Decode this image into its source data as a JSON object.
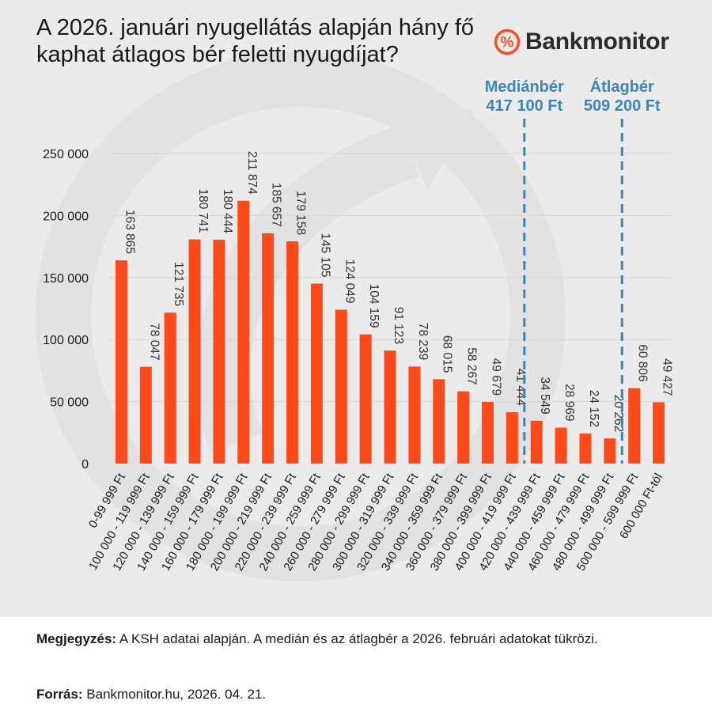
{
  "title": "A 2026. januári nyugellátás alapján hány fő kaphat átlagos bér feletti nyugdíjat?",
  "brand": {
    "icon_text": "%",
    "icon": "percent-circle-icon",
    "name": "Bankmonitor",
    "accent_color": "#f4511e"
  },
  "colors": {
    "bar": "#fc4a1a",
    "reference_line": "#3d86b3",
    "panel_background": "#ebebeb",
    "gridline": "#d6d6d6"
  },
  "chart_data": {
    "type": "bar",
    "title": "A 2026. januári nyugellátás alapján hány fő kaphat átlagos bér feletti nyugdíjat?",
    "xlabel": "",
    "ylabel": "",
    "ylim": [
      0,
      250000
    ],
    "yticks": [
      0,
      50000,
      100000,
      150000,
      200000,
      250000
    ],
    "ytick_labels": [
      "0",
      "50 000",
      "100 000",
      "150 000",
      "200 000",
      "250 000"
    ],
    "grid": true,
    "categories": [
      "0-99 999 Ft",
      "100 000 - 119 999 Ft",
      "120 000 - 139 999 Ft",
      "140 000 - 159 999 Ft",
      "160 000 - 179 999 Ft",
      "180 000 - 199 999 Ft",
      "200 000 - 219 999 Ft",
      "220 000 - 239 999 Ft",
      "240 000 - 259 999 Ft",
      "260 000 - 279 999 Ft",
      "280 000 - 299 999 Ft",
      "300 000 - 319 999 Ft",
      "320 000 - 339 999 Ft",
      "340 000 - 359 999 Ft",
      "360 000 - 379 999 Ft",
      "380 000 - 399 999 Ft",
      "400 000 - 419 999 Ft",
      "420 000 - 439 999 Ft",
      "440 000 - 459 999 Ft",
      "460 000 - 479 999 Ft",
      "480 000 - 499 999 Ft",
      "500 000 - 599 999 Ft",
      "600 000 Ft-tól"
    ],
    "values": [
      163865,
      78047,
      121735,
      180741,
      180444,
      211874,
      185657,
      179158,
      145105,
      124049,
      104159,
      91123,
      78239,
      68015,
      58267,
      49679,
      41444,
      34549,
      28969,
      24152,
      20262,
      60806,
      49427
    ],
    "value_labels": [
      "163 865",
      "78 047",
      "121 735",
      "180 741",
      "180 444",
      "211 874",
      "185 657",
      "179 158",
      "145 105",
      "124 049",
      "104 159",
      "91 123",
      "78 239",
      "68 015",
      "58 267",
      "49 679",
      "41 444",
      "34 549",
      "28 969",
      "24 152",
      "20 262",
      "60 806",
      "49 427"
    ],
    "reference_lines": [
      {
        "name": "median",
        "label": "Mediánbér",
        "value_text": "417 100 Ft",
        "after_category_index": 16
      },
      {
        "name": "average",
        "label": "Átlagbér",
        "value_text": "509 200 Ft",
        "after_category_index": 20
      }
    ]
  },
  "notes": {
    "note_label": "Megjegyzés:",
    "note_text": " A KSH adatai alapján. A medián és az átlagbér a 2026. februári adatokat tükrözi.",
    "source_label": "Forrás:",
    "source_text": " Bankmonitor.hu, 2026. 04. 21."
  }
}
